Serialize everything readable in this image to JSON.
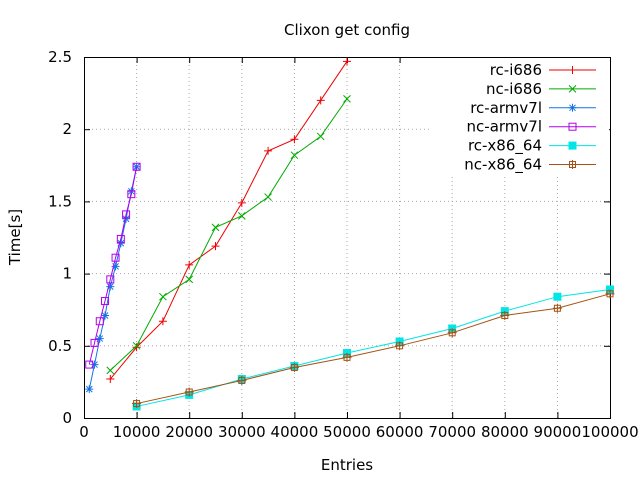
{
  "chart_data": {
    "type": "line",
    "title": "Clixon get config",
    "xlabel": "Entries",
    "ylabel": "Time[s]",
    "xlim": [
      0,
      100000
    ],
    "ylim": [
      0,
      2.5
    ],
    "grid": true,
    "legend_position": "top-right-inside",
    "background_color": "#ffffff",
    "border_color": "#000000",
    "grid_color": "#a8a8a8",
    "x_ticks": [
      0,
      10000,
      20000,
      30000,
      40000,
      50000,
      60000,
      70000,
      80000,
      90000,
      100000
    ],
    "x_tick_labels": [
      "0",
      "10000",
      "20000",
      "30000",
      "40000",
      "50000",
      "60000",
      "70000",
      "80000",
      "90000",
      "100000"
    ],
    "y_ticks": [
      0,
      0.5,
      1,
      1.5,
      2,
      2.5
    ],
    "y_tick_labels": [
      "0",
      "0.5",
      "1",
      "1.5",
      "2",
      "2.5"
    ],
    "series": [
      {
        "name": "rc-i686",
        "color": "#ee0000",
        "marker": "plus",
        "x": [
          5000,
          10000,
          15000,
          20000,
          25000,
          30000,
          35000,
          40000,
          45000,
          50000
        ],
        "y": [
          0.27,
          0.49,
          0.67,
          1.06,
          1.19,
          1.49,
          1.85,
          1.93,
          2.2,
          2.47
        ]
      },
      {
        "name": "nc-i686",
        "color": "#00ab00",
        "marker": "cross",
        "x": [
          5000,
          10000,
          15000,
          20000,
          25000,
          30000,
          35000,
          40000,
          45000,
          50000
        ],
        "y": [
          0.33,
          0.5,
          0.84,
          0.96,
          1.32,
          1.4,
          1.53,
          1.82,
          1.95,
          2.21
        ]
      },
      {
        "name": "rc-armv7l",
        "color": "#1373e6",
        "marker": "asterisk",
        "x": [
          1000,
          2000,
          3000,
          4000,
          5000,
          6000,
          7000,
          8000,
          9000,
          10000
        ],
        "y": [
          0.2,
          0.37,
          0.55,
          0.71,
          0.91,
          1.05,
          1.21,
          1.38,
          1.57,
          1.74
        ]
      },
      {
        "name": "nc-armv7l",
        "color": "#b000f0",
        "marker": "square-open",
        "x": [
          1000,
          2000,
          3000,
          4000,
          5000,
          6000,
          7000,
          8000,
          9000,
          10000
        ],
        "y": [
          0.37,
          0.52,
          0.67,
          0.81,
          0.96,
          1.11,
          1.24,
          1.41,
          1.55,
          1.74
        ]
      },
      {
        "name": "rc-x86_64",
        "color": "#00e5e5",
        "marker": "square-filled",
        "x": [
          10000,
          20000,
          30000,
          40000,
          50000,
          60000,
          70000,
          80000,
          90000,
          100000
        ],
        "y": [
          0.08,
          0.16,
          0.27,
          0.36,
          0.45,
          0.53,
          0.62,
          0.74,
          0.84,
          0.89
        ]
      },
      {
        "name": "nc-x86_64",
        "color": "#a55214",
        "marker": "square-plus",
        "x": [
          10000,
          20000,
          30000,
          40000,
          50000,
          60000,
          70000,
          80000,
          90000,
          100000
        ],
        "y": [
          0.1,
          0.18,
          0.26,
          0.35,
          0.42,
          0.5,
          0.59,
          0.71,
          0.76,
          0.86
        ]
      }
    ]
  }
}
